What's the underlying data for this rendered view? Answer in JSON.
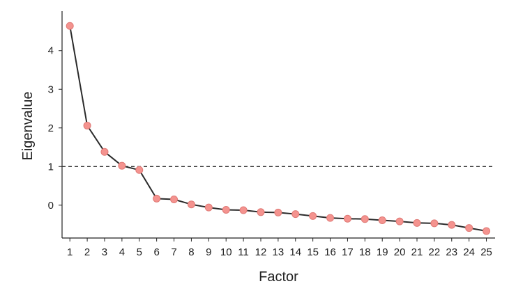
{
  "chart_data": {
    "type": "line",
    "xlabel": "Factor",
    "ylabel": "Eigenvalue",
    "x": [
      1,
      2,
      3,
      4,
      5,
      6,
      7,
      8,
      9,
      10,
      11,
      12,
      13,
      14,
      15,
      16,
      17,
      18,
      19,
      20,
      21,
      22,
      23,
      24,
      25
    ],
    "x_tick_labels": [
      "1",
      "2",
      "3",
      "4",
      "5",
      "6",
      "7",
      "8",
      "9",
      "10",
      "11",
      "12",
      "13",
      "14",
      "15",
      "16",
      "17",
      "18",
      "19",
      "20",
      "21",
      "22",
      "23",
      "24",
      "25"
    ],
    "y_ticks": [
      0,
      1,
      2,
      3,
      4
    ],
    "y_tick_labels": [
      "0",
      "1",
      "2",
      "3",
      "4"
    ],
    "xlim": [
      0.55,
      25.5
    ],
    "ylim": [
      -0.85,
      4.95
    ],
    "series": [
      {
        "values": [
          4.64,
          2.06,
          1.38,
          1.02,
          0.91,
          0.17,
          0.15,
          0.02,
          -0.06,
          -0.12,
          -0.13,
          -0.18,
          -0.19,
          -0.23,
          -0.28,
          -0.33,
          -0.35,
          -0.36,
          -0.39,
          -0.42,
          -0.46,
          -0.47,
          -0.51,
          -0.59,
          -0.67
        ],
        "line_color": "#2a2a2a",
        "point_color": "#f4938f",
        "point_edge_color": "#e07a76"
      }
    ],
    "reference_line": {
      "y": 1,
      "style": "dashed",
      "color": "#333333"
    },
    "grid": false,
    "legend": "none"
  }
}
